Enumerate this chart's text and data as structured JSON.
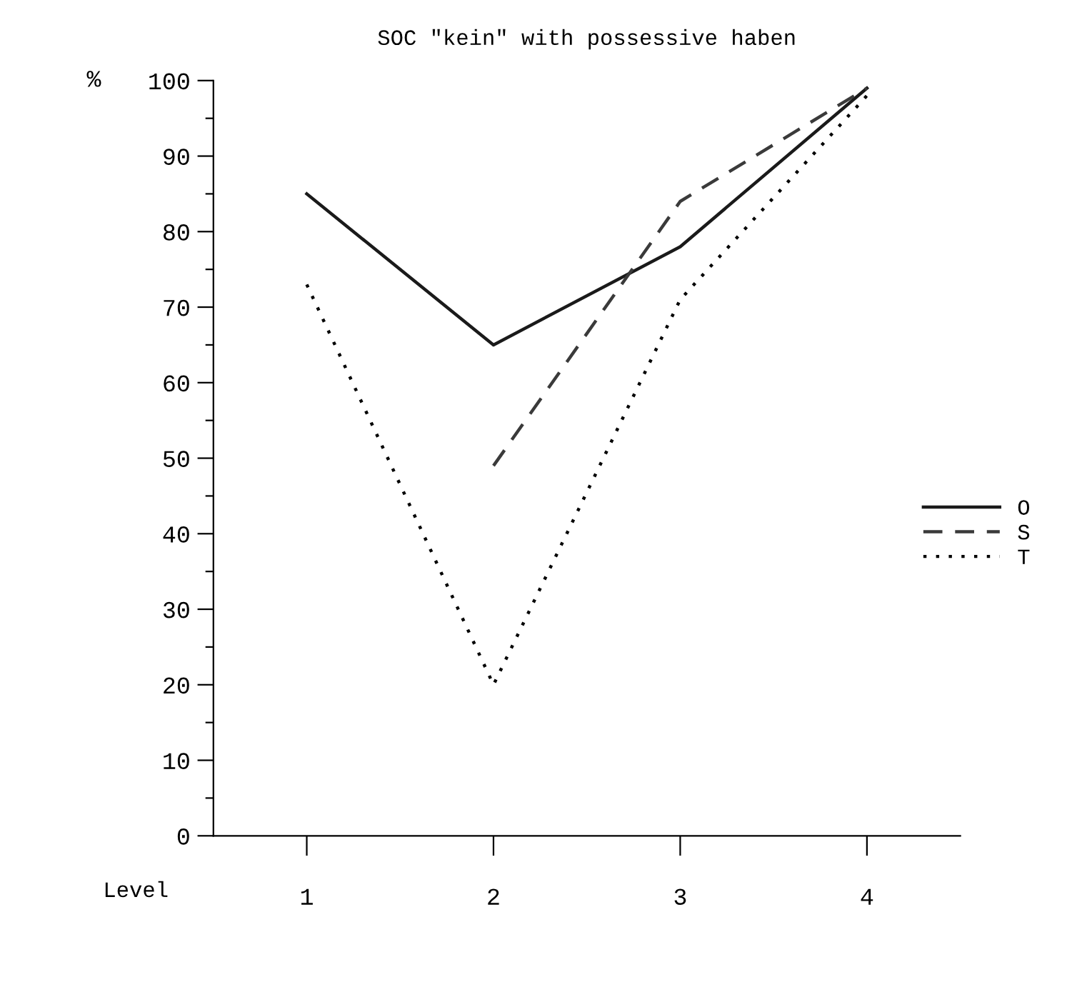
{
  "chart_data": {
    "type": "line",
    "title": "SOC \"kein\" with possessive haben",
    "xlabel": "Level",
    "ylabel": "%",
    "x": [
      1,
      2,
      3,
      4
    ],
    "series": [
      {
        "name": "O",
        "color": "#1a1a1a",
        "line_style": "solid",
        "values": [
          85,
          65,
          78,
          99
        ]
      },
      {
        "name": "S",
        "color": "#3a3a3a",
        "line_style": "dashed",
        "x": [
          2,
          3,
          4
        ],
        "values": [
          49,
          84,
          99
        ]
      },
      {
        "name": "T",
        "color": "#000000",
        "line_style": "dotted",
        "values": [
          73,
          20,
          71,
          98
        ]
      }
    ],
    "xlim": [
      0.5,
      4.5
    ],
    "xticks": [
      1,
      2,
      3,
      4
    ],
    "ylim": [
      0,
      100
    ],
    "yticks": [
      0,
      {
        "value": 5,
        "label": null
      },
      10,
      {
        "value": 15,
        "label": null
      },
      20,
      {
        "value": 25,
        "label": null
      },
      30,
      {
        "value": 35,
        "label": null
      },
      40,
      {
        "value": 45,
        "label": null
      },
      50,
      {
        "value": 55,
        "label": null
      },
      60,
      {
        "value": 65,
        "label": null
      },
      70,
      {
        "value": 75,
        "label": null
      },
      80,
      {
        "value": 85,
        "label": null
      },
      90,
      {
        "value": 95,
        "label": null
      },
      100
    ],
    "grid": false,
    "legend": "right",
    "marker": "none"
  }
}
